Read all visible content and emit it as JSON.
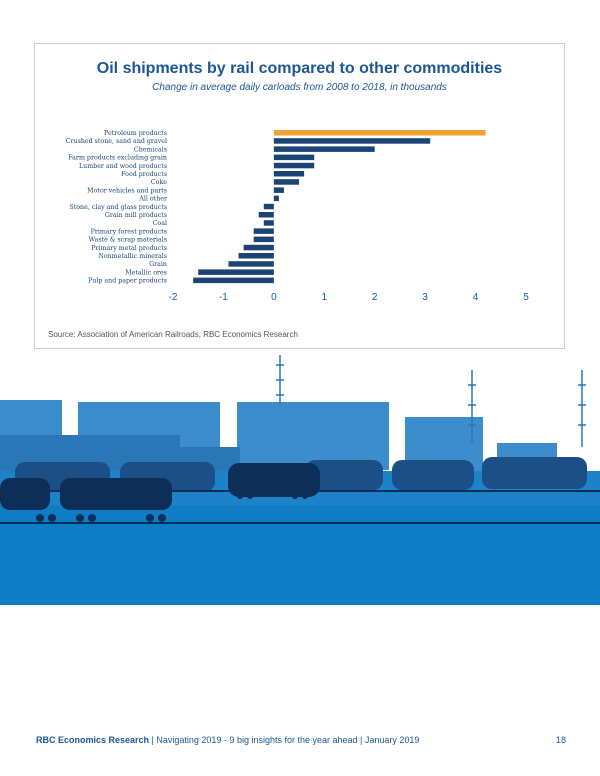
{
  "chart_data": {
    "type": "bar",
    "orientation": "horizontal",
    "title": "Oil shipments by rail compared to other commodities",
    "subtitle": "Change in average daily carloads from 2008 to 2018, in thousands",
    "categories": [
      "Petroleum products",
      "Crushed stone, sand and gravel",
      "Chemicals",
      "Farm products excluding grain",
      "Lumber and wood products",
      "Food products",
      "Coke",
      "Motor vehicles and parts",
      "All other",
      "Stone, clay and glass products",
      "Grain mill products",
      "Coal",
      "Primary forest products",
      "Waste & scrap materials",
      "Primary metal products",
      "Nonmetallic minerals",
      "Grain",
      "Metallic ores",
      "Pulp and paper products"
    ],
    "values": [
      4.2,
      3.1,
      2.0,
      0.8,
      0.8,
      0.6,
      0.5,
      0.2,
      0.1,
      -0.2,
      -0.3,
      -0.2,
      -0.4,
      -0.4,
      -0.6,
      -0.7,
      -0.9,
      -1.5,
      -1.6
    ],
    "xlim": [
      -2,
      5
    ],
    "xticks": [
      -2,
      -1,
      0,
      1,
      2,
      3,
      4,
      5
    ],
    "grid": false,
    "colors": {
      "highlight": "#f4a234",
      "default": "#1a4474"
    },
    "highlight_index": 0
  },
  "source": "Source: Association of American Railroads, RBC Economics Research",
  "footer": {
    "brand": "RBC Economics Research",
    "text": " | Navigating 2019 - 9 big insights for the year ahead | January 2019",
    "page": "18"
  }
}
